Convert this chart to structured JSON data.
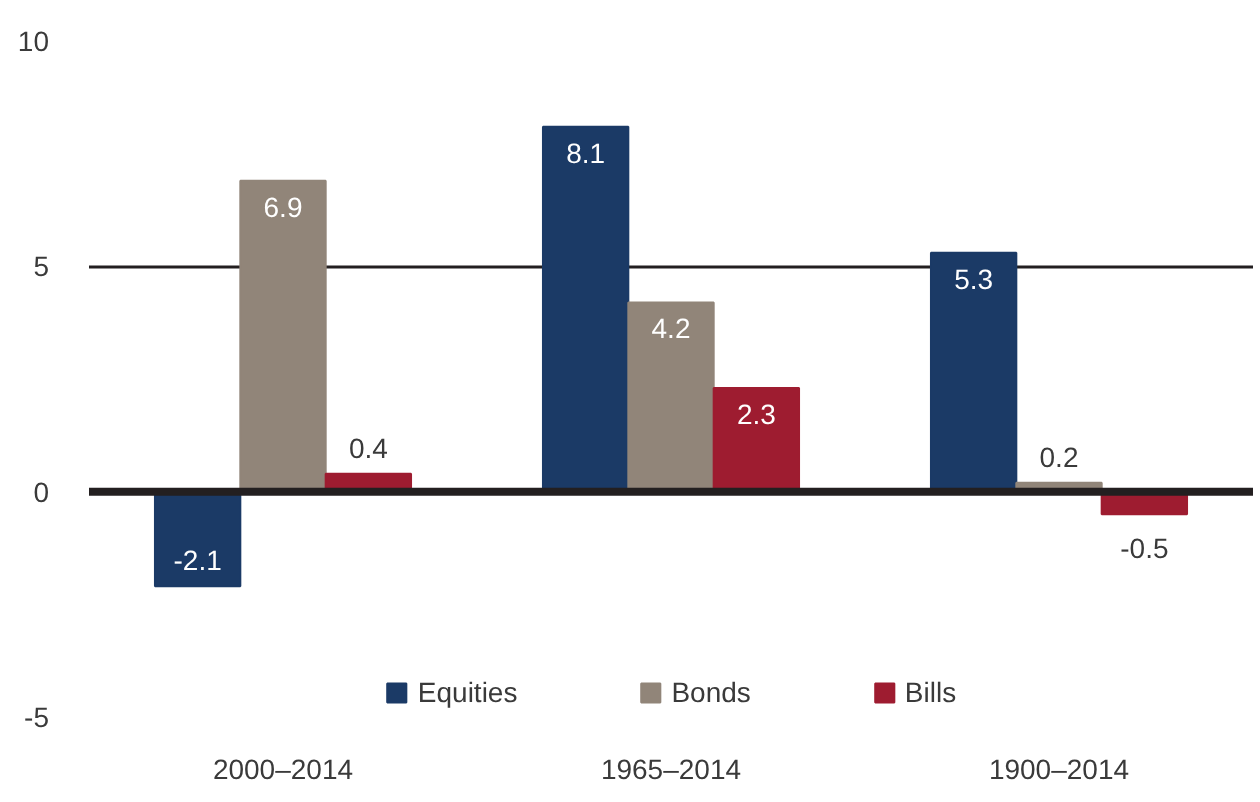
{
  "chart_data": {
    "type": "bar",
    "categories": [
      "2000–2014",
      "1965–2014",
      "1900–2014"
    ],
    "series": [
      {
        "name": "Equities",
        "color": "#1b3a66",
        "values": [
          -2.1,
          8.1,
          5.3
        ]
      },
      {
        "name": "Bonds",
        "color": "#918579",
        "values": [
          6.9,
          4.2,
          0.2
        ]
      },
      {
        "name": "Bills",
        "color": "#9e1c30",
        "values": [
          0.4,
          2.3,
          -0.5
        ]
      }
    ],
    "ylim": [
      -5,
      10
    ],
    "yticks": [
      -5,
      0,
      5,
      10
    ],
    "grid": "y",
    "ref_lines": [
      {
        "axis": "y",
        "value": 0,
        "color": "#231f20"
      }
    ],
    "data_labels": true,
    "legend": "bottom"
  }
}
